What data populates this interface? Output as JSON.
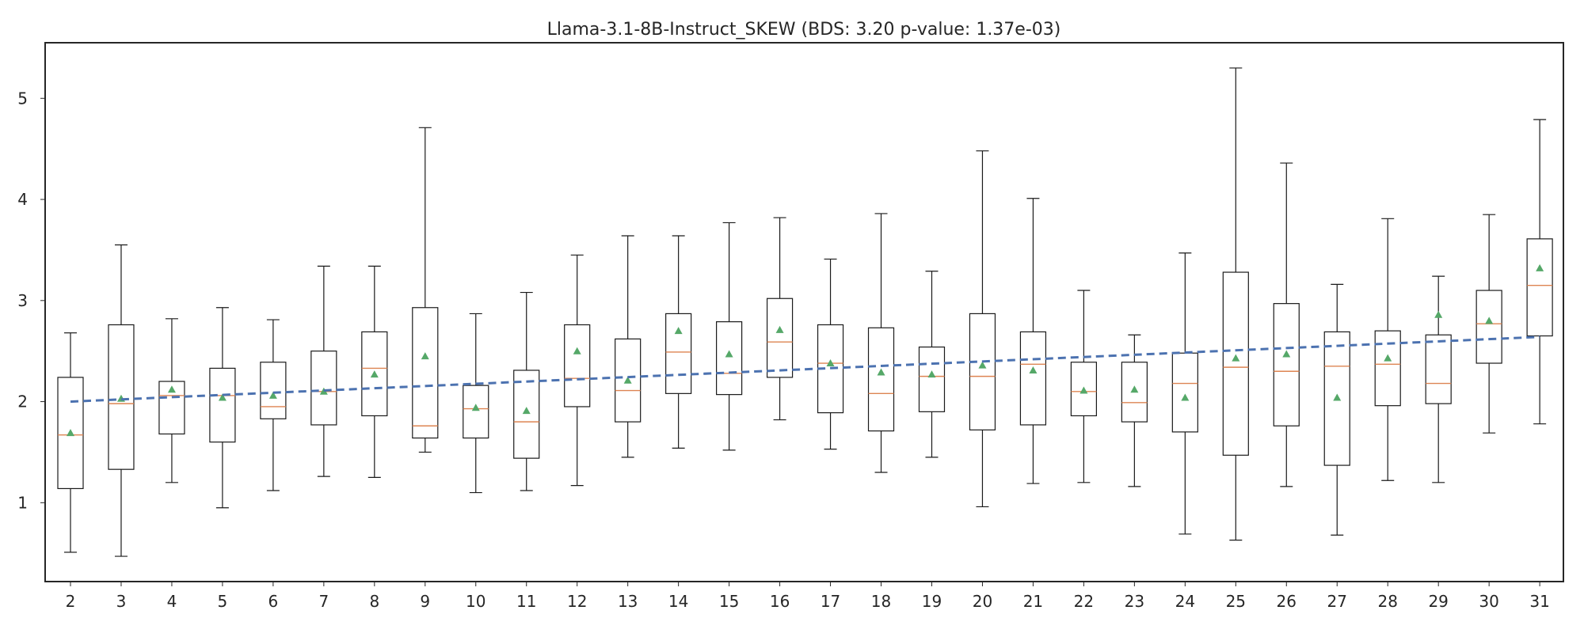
{
  "chart_data": {
    "type": "box",
    "title": "Llama-3.1-8B-Instruct_SKEW (BDS: 3.20 p-value: 1.37e-03)",
    "xlabel": "",
    "ylabel": "",
    "ylim": [
      0.22,
      5.55
    ],
    "yticks": [
      1,
      2,
      3,
      4,
      5
    ],
    "grid": false,
    "categories": [
      "2",
      "3",
      "4",
      "5",
      "6",
      "7",
      "8",
      "9",
      "10",
      "11",
      "12",
      "13",
      "14",
      "15",
      "16",
      "17",
      "18",
      "19",
      "20",
      "21",
      "22",
      "23",
      "24",
      "25",
      "26",
      "27",
      "28",
      "29",
      "30",
      "31"
    ],
    "boxes": [
      {
        "category": "2",
        "whisker_low": 0.51,
        "q1": 1.14,
        "median": 1.67,
        "q3": 2.24,
        "whisker_high": 2.68,
        "mean": 1.69
      },
      {
        "category": "3",
        "whisker_low": 0.47,
        "q1": 1.33,
        "median": 1.98,
        "q3": 2.76,
        "whisker_high": 3.55,
        "mean": 2.03
      },
      {
        "category": "4",
        "whisker_low": 1.2,
        "q1": 1.68,
        "median": 2.06,
        "q3": 2.2,
        "whisker_high": 2.82,
        "mean": 2.12
      },
      {
        "category": "5",
        "whisker_low": 0.95,
        "q1": 1.6,
        "median": 2.06,
        "q3": 2.33,
        "whisker_high": 2.93,
        "mean": 2.04
      },
      {
        "category": "6",
        "whisker_low": 1.12,
        "q1": 1.83,
        "median": 1.95,
        "q3": 2.39,
        "whisker_high": 2.81,
        "mean": 2.06
      },
      {
        "category": "7",
        "whisker_low": 1.26,
        "q1": 1.77,
        "median": 2.1,
        "q3": 2.5,
        "whisker_high": 3.34,
        "mean": 2.1
      },
      {
        "category": "8",
        "whisker_low": 1.25,
        "q1": 1.86,
        "median": 2.33,
        "q3": 2.69,
        "whisker_high": 3.34,
        "mean": 2.27
      },
      {
        "category": "9",
        "whisker_low": 1.5,
        "q1": 1.64,
        "median": 1.76,
        "q3": 2.93,
        "whisker_high": 4.71,
        "mean": 2.45
      },
      {
        "category": "10",
        "whisker_low": 1.1,
        "q1": 1.64,
        "median": 1.93,
        "q3": 2.16,
        "whisker_high": 2.87,
        "mean": 1.94
      },
      {
        "category": "11",
        "whisker_low": 1.12,
        "q1": 1.44,
        "median": 1.8,
        "q3": 2.31,
        "whisker_high": 3.08,
        "mean": 1.91
      },
      {
        "category": "12",
        "whisker_low": 1.17,
        "q1": 1.95,
        "median": 2.23,
        "q3": 2.76,
        "whisker_high": 3.45,
        "mean": 2.5
      },
      {
        "category": "13",
        "whisker_low": 1.45,
        "q1": 1.8,
        "median": 2.11,
        "q3": 2.62,
        "whisker_high": 3.64,
        "mean": 2.21
      },
      {
        "category": "14",
        "whisker_low": 1.54,
        "q1": 2.08,
        "median": 2.49,
        "q3": 2.87,
        "whisker_high": 3.64,
        "mean": 2.7
      },
      {
        "category": "15",
        "whisker_low": 1.52,
        "q1": 2.07,
        "median": 2.28,
        "q3": 2.79,
        "whisker_high": 3.77,
        "mean": 2.47
      },
      {
        "category": "16",
        "whisker_low": 1.82,
        "q1": 2.24,
        "median": 2.59,
        "q3": 3.02,
        "whisker_high": 3.82,
        "mean": 2.71
      },
      {
        "category": "17",
        "whisker_low": 1.53,
        "q1": 1.89,
        "median": 2.38,
        "q3": 2.76,
        "whisker_high": 3.41,
        "mean": 2.38
      },
      {
        "category": "18",
        "whisker_low": 1.3,
        "q1": 1.71,
        "median": 2.08,
        "q3": 2.73,
        "whisker_high": 3.86,
        "mean": 2.29
      },
      {
        "category": "19",
        "whisker_low": 1.45,
        "q1": 1.9,
        "median": 2.25,
        "q3": 2.54,
        "whisker_high": 3.29,
        "mean": 2.27
      },
      {
        "category": "20",
        "whisker_low": 0.96,
        "q1": 1.72,
        "median": 2.25,
        "q3": 2.87,
        "whisker_high": 4.48,
        "mean": 2.36
      },
      {
        "category": "21",
        "whisker_low": 1.19,
        "q1": 1.77,
        "median": 2.37,
        "q3": 2.69,
        "whisker_high": 4.01,
        "mean": 2.31
      },
      {
        "category": "22",
        "whisker_low": 1.2,
        "q1": 1.86,
        "median": 2.1,
        "q3": 2.39,
        "whisker_high": 3.1,
        "mean": 2.11
      },
      {
        "category": "23",
        "whisker_low": 1.16,
        "q1": 1.8,
        "median": 1.99,
        "q3": 2.39,
        "whisker_high": 2.66,
        "mean": 2.12
      },
      {
        "category": "24",
        "whisker_low": 0.69,
        "q1": 1.7,
        "median": 2.18,
        "q3": 2.48,
        "whisker_high": 3.47,
        "mean": 2.04
      },
      {
        "category": "25",
        "whisker_low": 0.63,
        "q1": 1.47,
        "median": 2.34,
        "q3": 3.28,
        "whisker_high": 5.3,
        "mean": 2.43
      },
      {
        "category": "26",
        "whisker_low": 1.16,
        "q1": 1.76,
        "median": 2.3,
        "q3": 2.97,
        "whisker_high": 4.36,
        "mean": 2.47
      },
      {
        "category": "27",
        "whisker_low": 0.68,
        "q1": 1.37,
        "median": 2.35,
        "q3": 2.69,
        "whisker_high": 3.16,
        "mean": 2.04
      },
      {
        "category": "28",
        "whisker_low": 1.22,
        "q1": 1.96,
        "median": 2.37,
        "q3": 2.7,
        "whisker_high": 3.81,
        "mean": 2.43
      },
      {
        "category": "29",
        "whisker_low": 1.2,
        "q1": 1.98,
        "median": 2.18,
        "q3": 2.66,
        "whisker_high": 3.24,
        "mean": 2.86
      },
      {
        "category": "30",
        "whisker_low": 1.69,
        "q1": 2.38,
        "median": 2.77,
        "q3": 3.1,
        "whisker_high": 3.85,
        "mean": 2.8
      },
      {
        "category": "31",
        "whisker_low": 1.78,
        "q1": 2.65,
        "median": 3.15,
        "q3": 3.61,
        "whisker_high": 4.79,
        "mean": 3.32
      }
    ],
    "trend_line": {
      "style": "dashed",
      "x_start": "2",
      "y_start": 2.0,
      "x_end": "31",
      "y_end": 2.64
    },
    "colors": {
      "box": "#1a1a1a",
      "median": "#dd8452",
      "mean_marker": "#55a868",
      "trend": "#4c72b0",
      "axes": "#262626"
    }
  }
}
